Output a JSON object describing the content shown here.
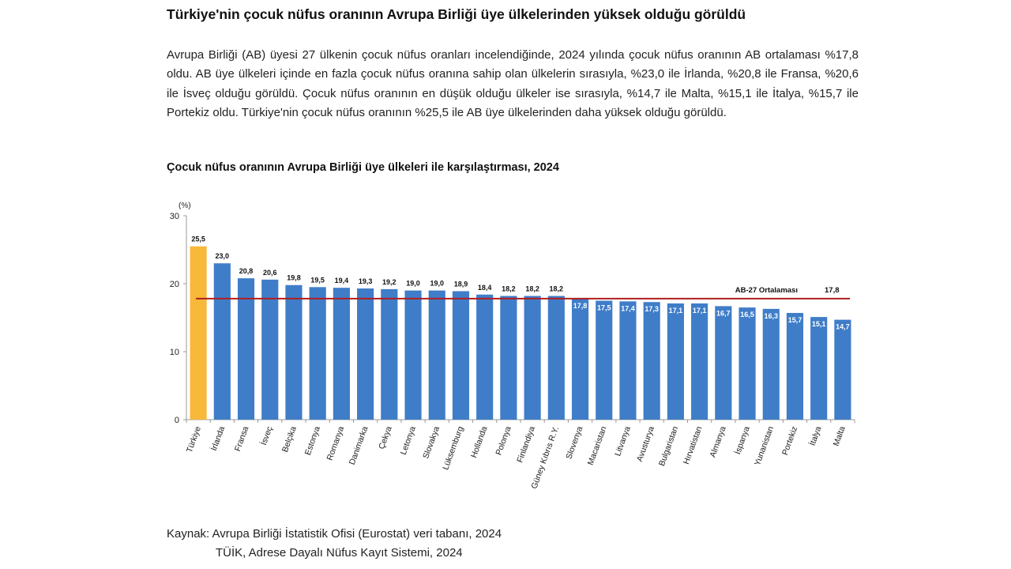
{
  "title": "Türkiye'nin çocuk nüfus oranının Avrupa Birliği üye ülkelerinden yüksek olduğu görüldü",
  "paragraph": "Avrupa Birliği (AB) üyesi 27 ülkenin çocuk nüfus oranları incelendiğinde, 2024 yılında çocuk nüfus oranının AB ortalaması %17,8 oldu. AB üye ülkeleri içinde en fazla çocuk nüfus oranına sahip olan ülkelerin sırasıyla, %23,0 ile İrlanda, %20,8 ile Fransa, %20,6 ile İsveç olduğu görüldü. Çocuk nüfus oranının en düşük olduğu ülkeler ise sırasıyla, %14,7 ile Malta, %15,1 ile İtalya, %15,7 ile Portekiz oldu. Türkiye'nin çocuk nüfus oranının %25,5 ile AB üye ülkelerinden daha yüksek olduğu görüldü.",
  "source": {
    "line1": "Kaynak: Avrupa Birliği İstatistik Ofisi (Eurostat) veri tabanı, 2024",
    "line2": "TÜİK, Adrese Dayalı Nüfus Kayıt Sistemi, 2024"
  },
  "colors": {
    "highlight": "#F8B83A",
    "bar": "#3F7DC8",
    "average": "#B01E1E"
  },
  "chart_data": {
    "type": "bar",
    "title": "Çocuk nüfus oranının Avrupa Birliği üye ülkeleri ile karşılaştırması, 2024",
    "ylabel": "(%)",
    "ylim": [
      0,
      30
    ],
    "yticks": [
      0,
      10,
      20,
      30
    ],
    "categories": [
      "Türkiye",
      "İrlanda",
      "Fransa",
      "İsveç",
      "Belçika",
      "Estonya",
      "Romanya",
      "Danimarka",
      "Çekya",
      "Letonya",
      "Slovakya",
      "Lüksemburg",
      "Hollanda",
      "Polonya",
      "Finlandiya",
      "Güney Kıbrıs R.Y.",
      "Slovenya",
      "Macaristan",
      "Litvanya",
      "Avusturya",
      "Bulgaristan",
      "Hırvatistan",
      "Almanya",
      "İspanya",
      "Yunanistan",
      "Portekiz",
      "İtalya",
      "Malta"
    ],
    "values": [
      25.5,
      23.0,
      20.8,
      20.6,
      19.8,
      19.5,
      19.4,
      19.3,
      19.2,
      19.0,
      19.0,
      18.9,
      18.4,
      18.2,
      18.2,
      18.2,
      17.8,
      17.5,
      17.4,
      17.3,
      17.1,
      17.1,
      16.7,
      16.5,
      16.3,
      15.7,
      15.1,
      14.7
    ],
    "average": {
      "label": "AB-27 Ortalaması",
      "value": 17.8,
      "value_label": "17,8"
    }
  }
}
